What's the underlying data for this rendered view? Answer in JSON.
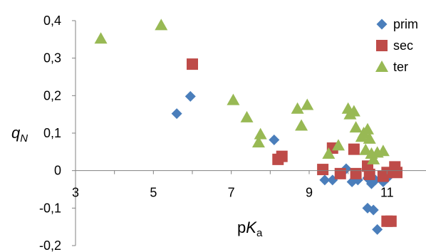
{
  "chart_data": {
    "type": "scatter",
    "xlabel": {
      "main": "p",
      "italic": "K",
      "sub": "a"
    },
    "ylabel": {
      "italic": "q",
      "sub": "N"
    },
    "xlim": [
      3,
      12
    ],
    "ylim": [
      -0.2,
      0.4
    ],
    "x_ticks": [
      3,
      5,
      7,
      9,
      11
    ],
    "x_tick_labels": [
      "3",
      "5",
      "7",
      "9",
      "11"
    ],
    "y_ticks": [
      0.4,
      0.3,
      0.2,
      0.1,
      0,
      -0.1,
      -0.2
    ],
    "y_tick_labels": [
      "0,4",
      "0,3",
      "0,2",
      "0,1",
      "0",
      "-0,1",
      "-0,2"
    ],
    "grid": false,
    "legend_position": "top-right",
    "series": [
      {
        "name": "prim",
        "marker": "diamond",
        "color": "#4a7ebb",
        "points": [
          [
            5.6,
            0.152
          ],
          [
            5.95,
            0.198
          ],
          [
            8.1,
            0.082
          ],
          [
            9.4,
            -0.025
          ],
          [
            9.6,
            -0.025
          ],
          [
            9.95,
            0.005
          ],
          [
            10.1,
            -0.03
          ],
          [
            10.25,
            -0.025
          ],
          [
            10.5,
            -0.02
          ],
          [
            10.6,
            -0.035
          ],
          [
            10.7,
            -0.025
          ],
          [
            10.9,
            -0.03
          ],
          [
            10.5,
            -0.1
          ],
          [
            10.65,
            -0.105
          ],
          [
            10.75,
            -0.157
          ],
          [
            11.0,
            -0.02
          ]
        ]
      },
      {
        "name": "sec",
        "marker": "square",
        "color": "#be4b48",
        "points": [
          [
            6.0,
            0.284
          ],
          [
            8.2,
            0.03
          ],
          [
            8.3,
            0.038
          ],
          [
            9.35,
            0.003
          ],
          [
            9.6,
            0.06
          ],
          [
            9.8,
            -0.008
          ],
          [
            10.2,
            -0.008
          ],
          [
            10.15,
            0.057
          ],
          [
            10.5,
            0.012
          ],
          [
            10.55,
            -0.01
          ],
          [
            10.9,
            -0.015
          ],
          [
            11.0,
            -0.005
          ],
          [
            11.2,
            0.01
          ],
          [
            11.25,
            -0.005
          ],
          [
            11.0,
            -0.135
          ],
          [
            11.1,
            -0.135
          ]
        ]
      },
      {
        "name": "ter",
        "marker": "triangle",
        "color": "#98b954",
        "points": [
          [
            3.65,
            0.352
          ],
          [
            5.2,
            0.388
          ],
          [
            7.05,
            0.188
          ],
          [
            7.4,
            0.142
          ],
          [
            7.7,
            0.075
          ],
          [
            7.75,
            0.097
          ],
          [
            8.7,
            0.165
          ],
          [
            8.8,
            0.12
          ],
          [
            8.95,
            0.175
          ],
          [
            9.5,
            0.045
          ],
          [
            9.75,
            0.067
          ],
          [
            10.0,
            0.165
          ],
          [
            10.05,
            0.15
          ],
          [
            10.15,
            0.158
          ],
          [
            10.2,
            0.115
          ],
          [
            10.35,
            0.09
          ],
          [
            10.4,
            0.1
          ],
          [
            10.5,
            0.11
          ],
          [
            10.45,
            0.055
          ],
          [
            10.55,
            0.085
          ],
          [
            10.6,
            0.045
          ],
          [
            10.65,
            0.03
          ],
          [
            10.75,
            0.048
          ],
          [
            10.9,
            0.052
          ]
        ]
      }
    ]
  }
}
